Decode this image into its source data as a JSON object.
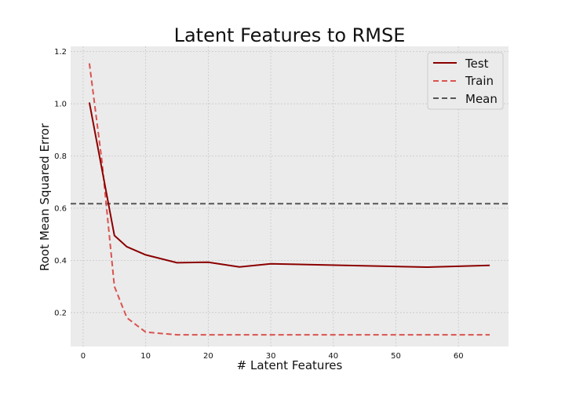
{
  "chart_data": {
    "type": "line",
    "title": "Latent Features to RMSE",
    "xlabel": "# Latent Features",
    "ylabel": "Root Mean Squared Error",
    "xlim": [
      -2,
      68
    ],
    "ylim": [
      0.07,
      1.22
    ],
    "xticks": [
      0,
      10,
      20,
      30,
      40,
      50,
      60
    ],
    "yticks": [
      0.2,
      0.4,
      0.6,
      0.8,
      1.0,
      1.2
    ],
    "xtick_labels": [
      "0",
      "10",
      "20",
      "30",
      "40",
      "50",
      "60"
    ],
    "ytick_labels": [
      "0.2",
      "0.4",
      "0.6",
      "0.8",
      "1.0",
      "1.2"
    ],
    "grid": true,
    "legend_position": "top-right",
    "series": [
      {
        "name": "Test",
        "style": "solid",
        "color": "#8b0000",
        "x": [
          1,
          5,
          7,
          10,
          15,
          20,
          25,
          30,
          55,
          65
        ],
        "y": [
          1.005,
          0.495,
          0.452,
          0.421,
          0.391,
          0.393,
          0.375,
          0.387,
          0.374,
          0.381
        ]
      },
      {
        "name": "Train",
        "style": "dashed",
        "color": "#d9534f",
        "x": [
          1,
          3,
          5,
          7,
          10,
          15,
          20,
          30,
          40,
          50,
          60,
          65
        ],
        "y": [
          1.155,
          0.78,
          0.3,
          0.18,
          0.125,
          0.115,
          0.115,
          0.115,
          0.115,
          0.115,
          0.115,
          0.115
        ]
      },
      {
        "name": "Mean",
        "style": "dashed",
        "color": "#555555",
        "hline": 0.617
      }
    ]
  }
}
